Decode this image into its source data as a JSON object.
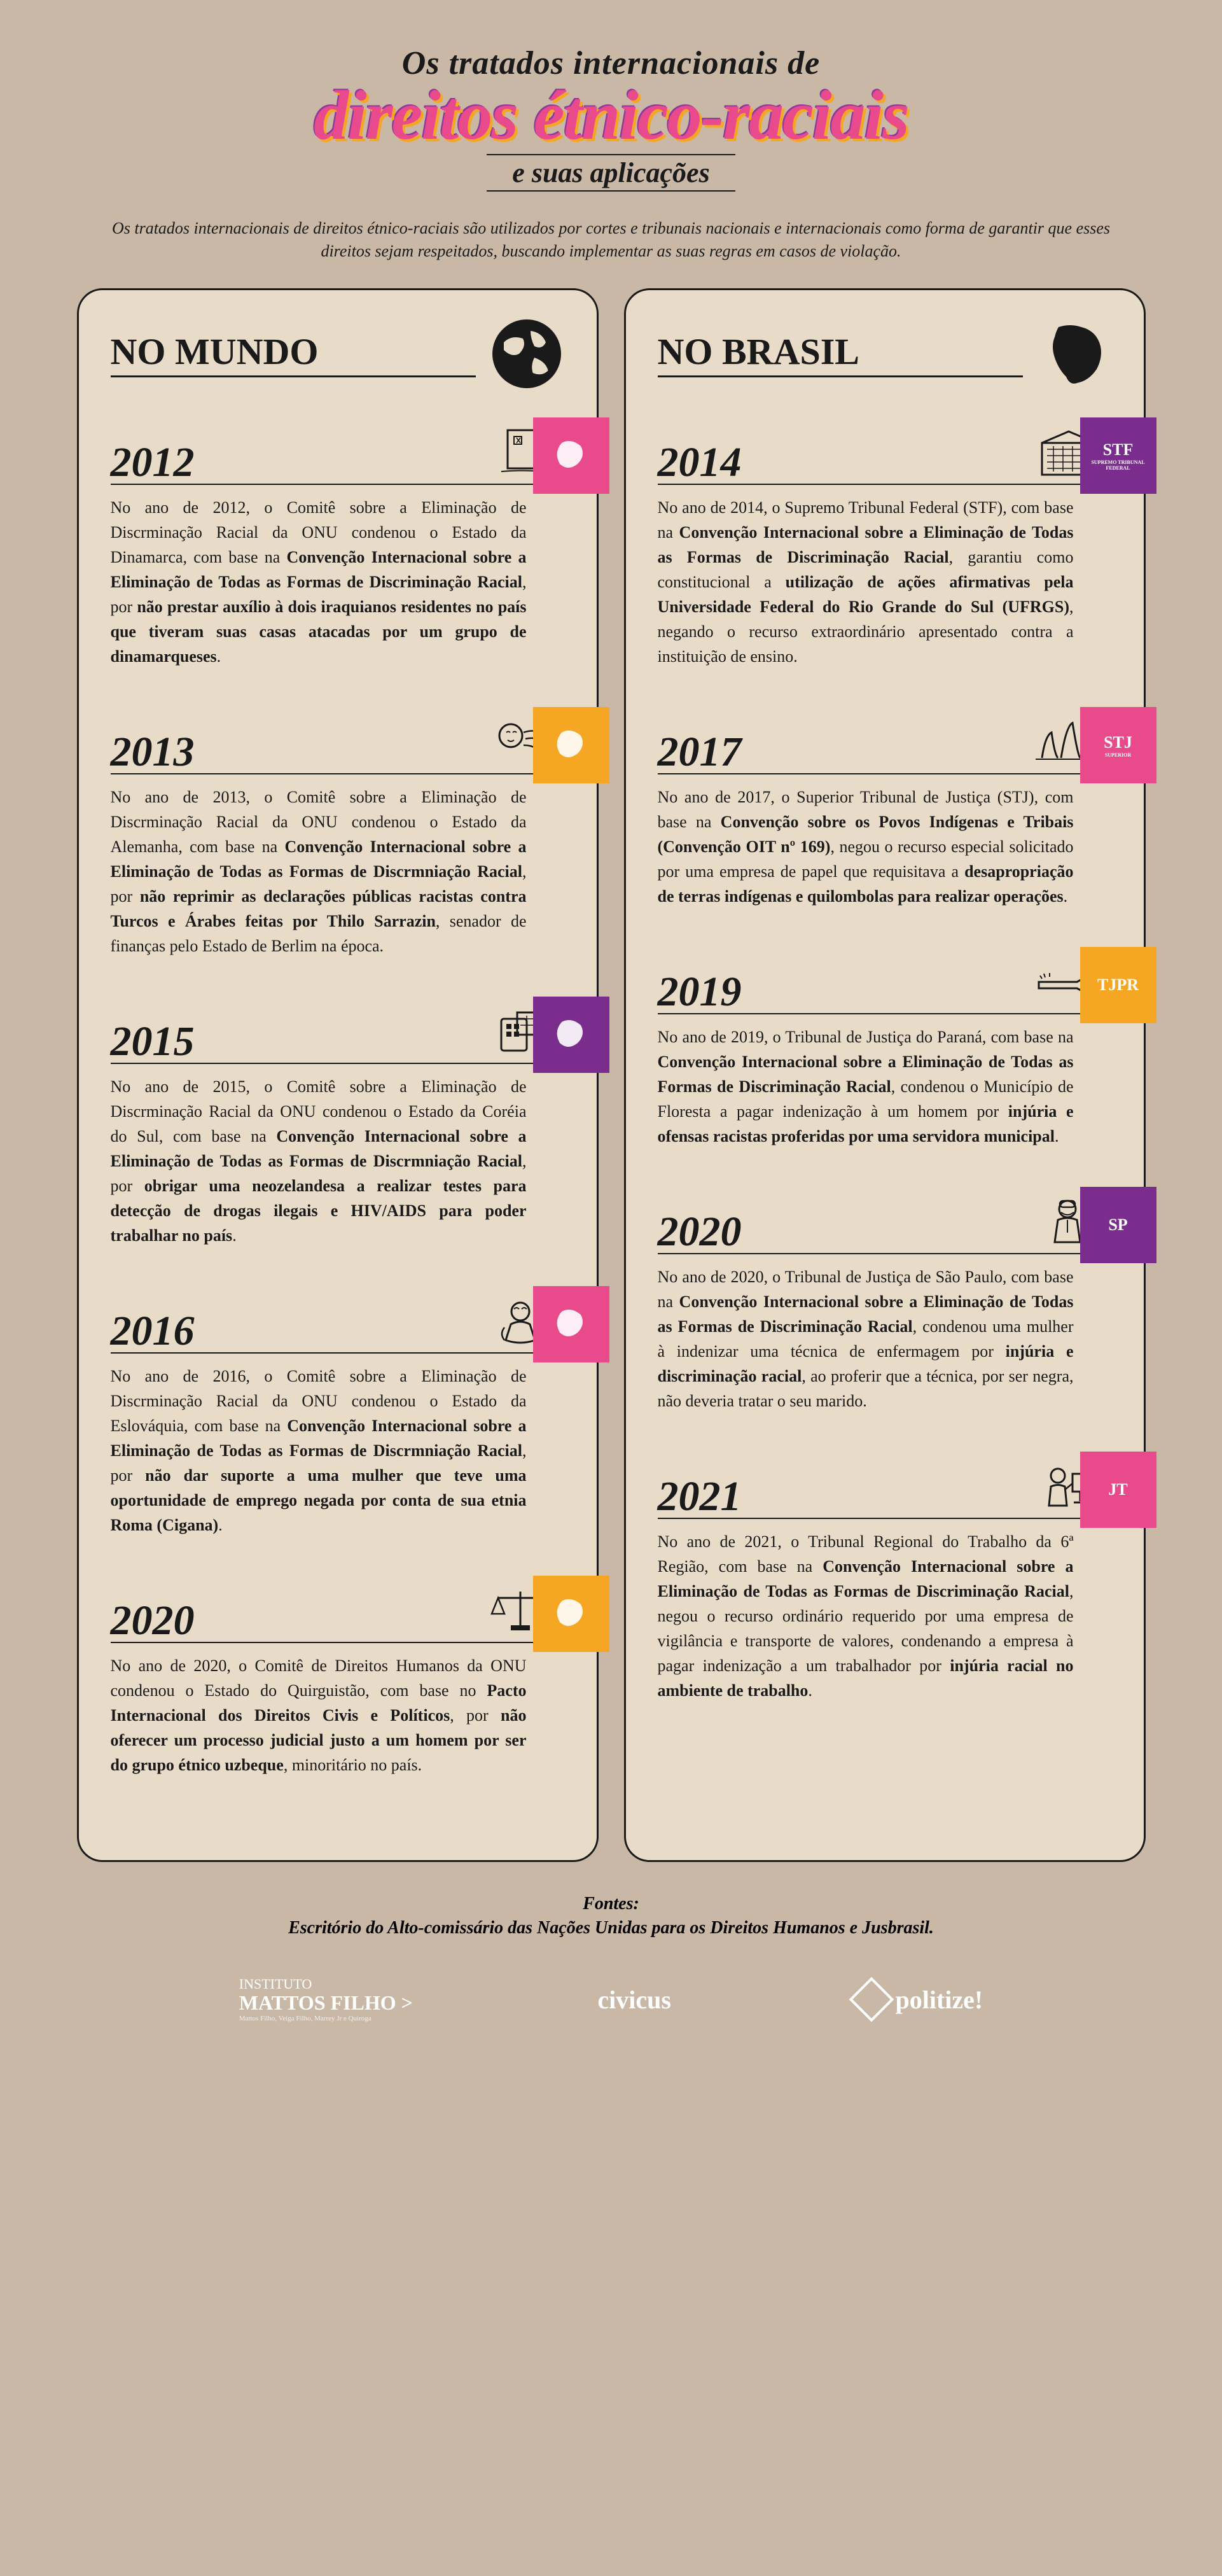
{
  "title": {
    "line1": "Os tratados internacionais de",
    "main": "direitos étnico-raciais",
    "line3": "e suas aplicações"
  },
  "intro": "Os tratados internacionais de direitos étnico-raciais são utilizados por cortes e tribunais nacionais e internacionais como forma de garantir que esses direitos sejam respeitados, buscando implementar as suas regras em casos de violação.",
  "columns": {
    "world": {
      "title": "NO MUNDO"
    },
    "brazil": {
      "title": "NO BRASIL"
    }
  },
  "world": [
    {
      "year": "2012",
      "badge_color": "#e84a8b",
      "pre": "No ano de 2012, o Comitê sobre a Eliminação de Discrminação Racial da ONU condenou o Estado da Dinamarca, com base na ",
      "bold1": "Convenção Internacional sobre a Eliminação de Todas as Formas de Discriminação Racial",
      "mid": ", por ",
      "bold2": "não prestar auxílio à dois iraquianos residentes no país que tiveram suas casas atacadas por um grupo de dinamarqueses",
      "post": "."
    },
    {
      "year": "2013",
      "badge_color": "#f5a623",
      "pre": "No ano de 2013, o Comitê sobre a Eliminação de Discrminação Racial da ONU condenou o Estado da Alemanha, com base na ",
      "bold1": "Convenção Internacional sobre a Eliminação de Todas as Formas de Discrmniação Racial",
      "mid": ", por ",
      "bold2": "não reprimir as declarações públicas racistas contra Turcos e Árabes feitas por Thilo Sarrazin",
      "post": ", senador de finanças pelo Estado de Berlim na época."
    },
    {
      "year": "2015",
      "badge_color": "#7b2d8e",
      "pre": "No ano de 2015, o Comitê sobre a Eliminação de Discrminação Racial da ONU condenou o Estado da Coréia do Sul, com base na ",
      "bold1": "Convenção Internacional sobre a Eliminação de Todas as Formas de Discrmniação Racial",
      "mid": ", por ",
      "bold2": "obrigar uma neozelandesa a realizar testes para detecção de drogas ilegais e HIV/AIDS para poder trabalhar no país",
      "post": "."
    },
    {
      "year": "2016",
      "badge_color": "#e84a8b",
      "pre": "No ano de 2016, o Comitê sobre a Eliminação de Discrminação Racial da ONU condenou o Estado da Eslováquia, com base na ",
      "bold1": "Convenção Internacional sobre a Eliminação de Todas as Formas de Discrmniação Racial",
      "mid": ", por ",
      "bold2": "não dar suporte a uma mulher que teve uma oportunidade de emprego negada por conta de sua etnia Roma (Cigana)",
      "post": "."
    },
    {
      "year": "2020",
      "badge_color": "#f5a623",
      "pre": "No ano de 2020, o Comitê de Direitos Humanos da ONU condenou o Estado do Quirguistão, com base no ",
      "bold1": "Pacto Internacional dos Direitos Civis e Políticos",
      "mid": ", por ",
      "bold2": "não oferecer um processo judicial justo a um homem por ser do grupo étnico uzbeque",
      "post": ", minoritário no país."
    }
  ],
  "brazil": [
    {
      "year": "2014",
      "badge_color": "#7b2d8e",
      "badge_label": "STF",
      "badge_sub": "SUPREMO TRIBUNAL FEDERAL",
      "pre": "No ano de 2014, o Supremo Tribunal Federal (STF), com base na ",
      "bold1": "Convenção Internacional sobre a Eliminação de Todas as Formas de Discriminação Racial",
      "mid": ", garantiu como constitucional a ",
      "bold2": "utilização de ações afirmativas pela Universidade Federal do Rio Grande do Sul (UFRGS)",
      "post": ", negando o recurso extraordinário apresentado contra a instituição de ensino."
    },
    {
      "year": "2017",
      "badge_color": "#e84a8b",
      "badge_label": "STJ",
      "badge_sub": "SUPERIOR",
      "pre": "No ano de 2017, o Superior Tribunal de Justiça (STJ), com base na ",
      "bold1": "Convenção sobre os Povos Indígenas e Tribais (Convenção OIT nº 169)",
      "mid": ", negou o recurso especial solicitado por uma empresa de papel que requisitava a ",
      "bold2": "desapropriação de terras indígenas e quilombolas para realizar operações",
      "post": "."
    },
    {
      "year": "2019",
      "badge_color": "#f5a623",
      "badge_label": "TJPR",
      "badge_sub": "",
      "pre": "No ano de 2019, o Tribunal de Justiça do Paraná, com base na ",
      "bold1": "Convenção Internacional sobre a Eliminação de Todas as Formas de Discriminação Racial",
      "mid": ", condenou o Município de Floresta a pagar indenização à um homem por ",
      "bold2": "injúria e ofensas racistas proferidas por uma servidora municipal",
      "post": "."
    },
    {
      "year": "2020",
      "badge_color": "#7b2d8e",
      "badge_label": "SP",
      "badge_sub": "",
      "pre": "No ano de 2020, o Tribunal de Justiça de São Paulo, com base na ",
      "bold1": "Convenção Internacional sobre a Eliminação de Todas as Formas de Discriminação Racial",
      "mid": ", condenou uma mulher à indenizar uma técnica de enfermagem por ",
      "bold2": "injúria e discriminação racial",
      "post": ", ao proferir que a técnica, por ser negra, não deveria tratar o seu marido."
    },
    {
      "year": "2021",
      "badge_color": "#e84a8b",
      "badge_label": "JT",
      "badge_sub": "",
      "pre": "No ano de 2021, o Tribunal Regional do Trabalho da 6ª Região, com base na ",
      "bold1": "Convenção Internacional sobre a Eliminação de Todas as Formas de Discriminação Racial",
      "mid": ", negou o recurso ordinário requerido por uma empresa de vigilância e transporte de valores, condenando a empresa à pagar indenização a um trabalhador por ",
      "bold2": "injúria racial no ambiente de trabalho",
      "post": "."
    }
  ],
  "footer": {
    "sources_label": "Fontes:",
    "sources": "Escritório do Alto-comissário das Nações Unidas para os Direitos Humanos e Jusbrasil."
  },
  "logos": {
    "instituto_l1": "INSTITUTO",
    "instituto_l2": "MATTOS FILHO >",
    "instituto_l3": "Mattos Filho, Veiga Filho, Marrey Jr e Quiroga",
    "civicus": "civicus",
    "politize": "politize!"
  }
}
